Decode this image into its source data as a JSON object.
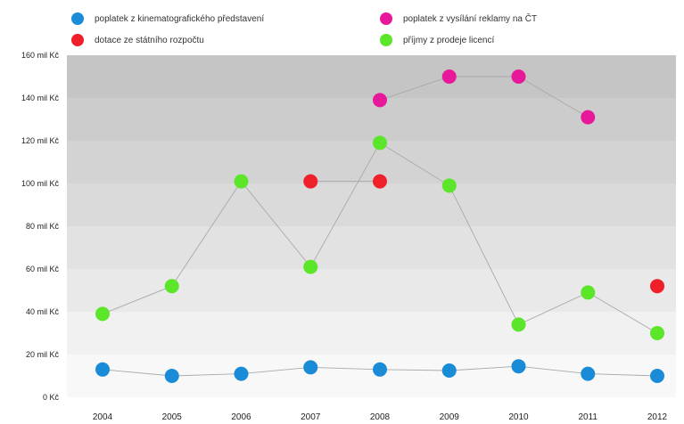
{
  "chart_data": {
    "type": "line",
    "title": "",
    "xlabel": "",
    "ylabel": "",
    "categories": [
      "2004",
      "2005",
      "2006",
      "2007",
      "2008",
      "2009",
      "2010",
      "2011",
      "2012"
    ],
    "y_ticks": [
      "0 Kč",
      "20 mil Kč",
      "40 mil Kč",
      "60 mil Kč",
      "80 mil Kč",
      "100 mil Kč",
      "120 mil Kč",
      "140 mil Kč",
      "160 mil Kč"
    ],
    "ylim": [
      0,
      160
    ],
    "y_unit": "mil Kč",
    "grid": "horizontal bands",
    "legend_position": "top",
    "series": [
      {
        "name": "poplatek z kinematografického představení",
        "color": "#1a8bd6",
        "values": [
          13,
          10,
          11,
          14,
          13,
          12.5,
          14.5,
          11,
          10
        ]
      },
      {
        "name": "dotace ze státního rozpočtu",
        "color": "#f0202a",
        "values": [
          null,
          null,
          null,
          101,
          101,
          null,
          null,
          null,
          52
        ]
      },
      {
        "name": "poplatek z vysílání reklamy na ČT",
        "color": "#e8189a",
        "values": [
          null,
          null,
          null,
          null,
          139,
          150,
          150,
          131,
          null
        ]
      },
      {
        "name": "příjmy z prodeje licencí",
        "color": "#5ce62a",
        "values": [
          39,
          52,
          101,
          61,
          119,
          99,
          34,
          49,
          30
        ]
      }
    ]
  }
}
